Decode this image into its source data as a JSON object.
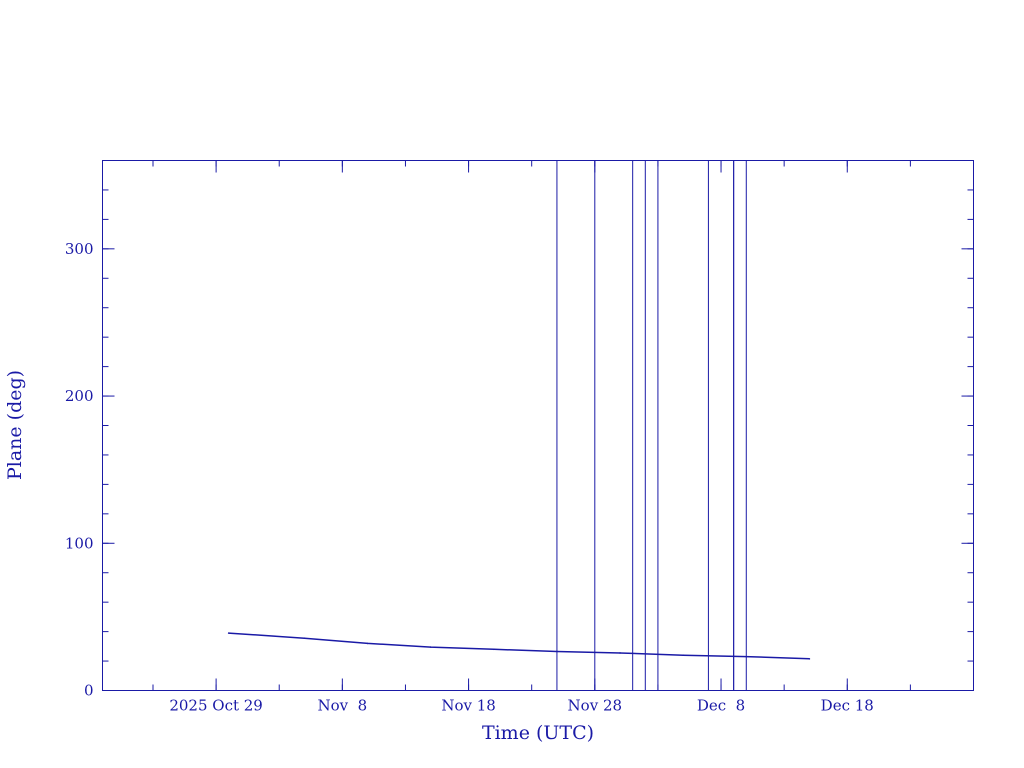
{
  "chart_data": {
    "type": "line",
    "title": "",
    "xlabel": "Time (UTC)",
    "ylabel": "Plane (deg)",
    "color": "#1a1aa6",
    "grid": false,
    "legend": "none",
    "xlim": [
      "2025-10-20",
      "2025-12-28"
    ],
    "ylim": [
      0,
      360
    ],
    "x_ticks": [
      {
        "date": "2025-10-29",
        "label": "2025 Oct 29"
      },
      {
        "date": "2025-11-08",
        "label": "Nov  8"
      },
      {
        "date": "2025-11-18",
        "label": "Nov 18"
      },
      {
        "date": "2025-11-28",
        "label": "Nov 28"
      },
      {
        "date": "2025-12-08",
        "label": "Dec  8"
      },
      {
        "date": "2025-12-18",
        "label": "Dec 18"
      }
    ],
    "y_ticks": [
      0,
      100,
      200,
      300
    ],
    "series": [
      {
        "x": [
          "2025-10-30",
          "2025-11-05",
          "2025-11-10",
          "2025-11-15",
          "2025-11-20",
          "2025-11-25",
          "2025-11-30",
          "2025-12-05",
          "2025-12-10",
          "2025-12-15"
        ],
        "y": [
          39,
          35.5,
          32,
          29.5,
          28,
          26.5,
          25.5,
          24,
          23,
          21.5
        ]
      }
    ],
    "vertical_lines": [
      "2025-11-25",
      "2025-11-28",
      "2025-12-01",
      "2025-12-02",
      "2025-12-03",
      "2025-12-07",
      "2025-12-09",
      "2025-12-09",
      "2025-12-10"
    ]
  }
}
